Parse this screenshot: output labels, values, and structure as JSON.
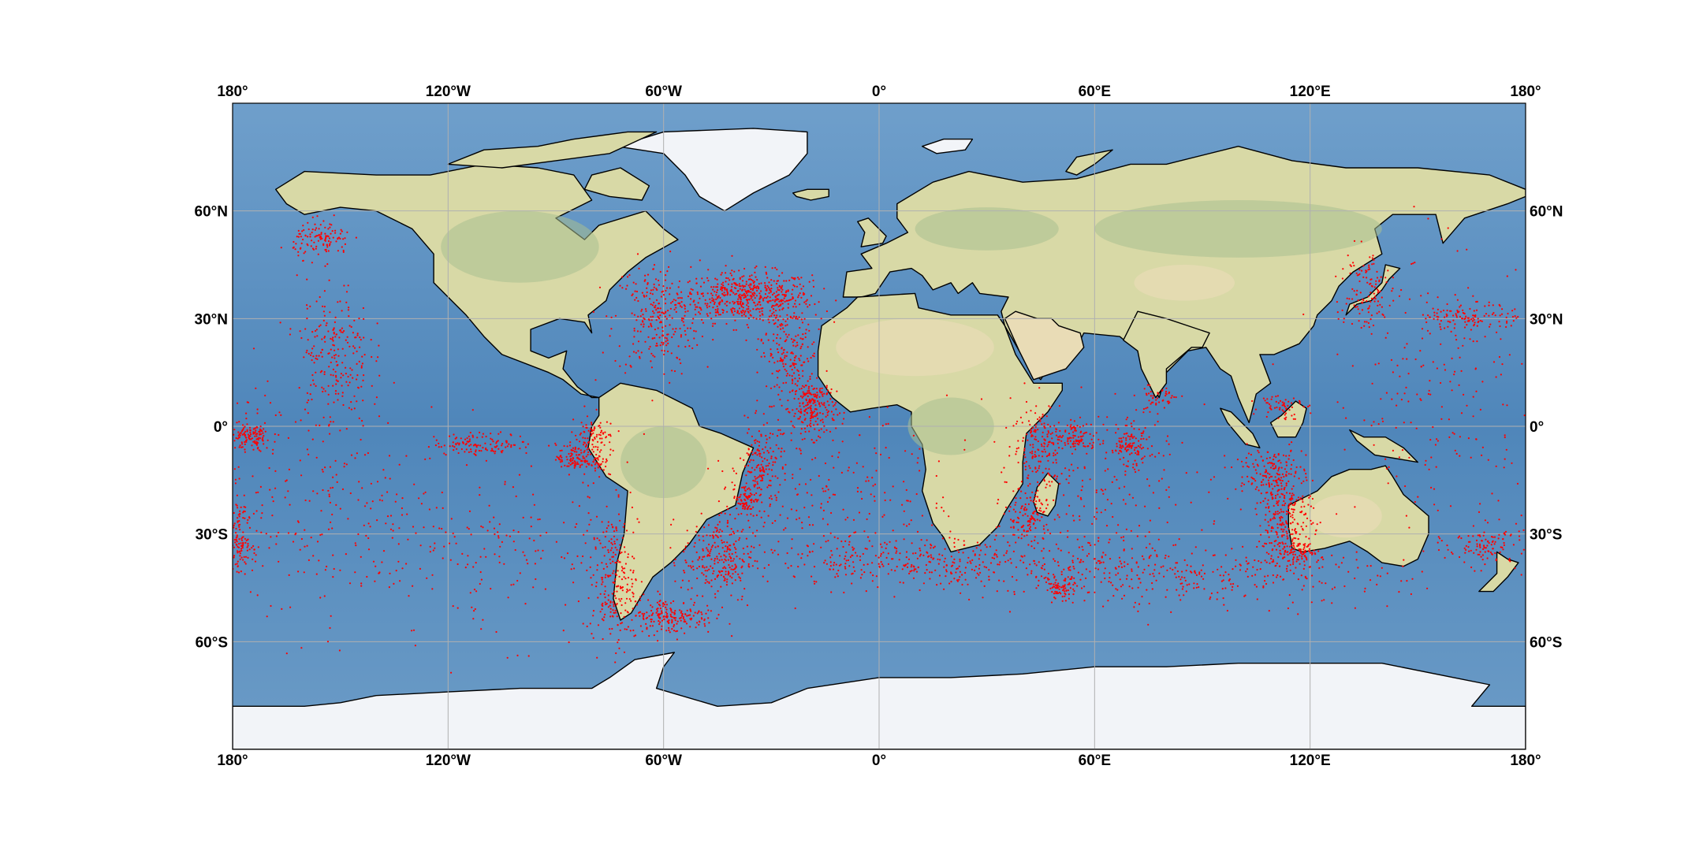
{
  "map": {
    "projection": "plate-carree",
    "extent": {
      "lon": [
        -180,
        180
      ],
      "lat": [
        -90,
        90
      ]
    },
    "background": "stock-image-relief",
    "gridlines": true,
    "coastlines": true,
    "colors": {
      "ocean": "#5b8fbf",
      "ocean_deep": "#4f86ba",
      "land": "#d8d9a6",
      "land_green": "#a9c08f",
      "desert": "#e9dcb6",
      "ice": "#f2f4f8",
      "coastline": "#000000",
      "grid": "#b0b0b0",
      "points": "#ff0000"
    },
    "lon_ticks": [
      {
        "value": -180,
        "label": "180°"
      },
      {
        "value": -120,
        "label": "120°W"
      },
      {
        "value": -60,
        "label": "60°W"
      },
      {
        "value": 0,
        "label": "0°"
      },
      {
        "value": 60,
        "label": "60°E"
      },
      {
        "value": 120,
        "label": "120°E"
      },
      {
        "value": 180,
        "label": "180°"
      }
    ],
    "lat_ticks": [
      {
        "value": 60,
        "label": "60°N"
      },
      {
        "value": 30,
        "label": "30°N"
      },
      {
        "value": 0,
        "label": "0°"
      },
      {
        "value": -30,
        "label": "30°S"
      },
      {
        "value": -60,
        "label": "60°S"
      }
    ],
    "point_clusters": [
      {
        "lon": -37,
        "lat": 36,
        "slon": 9,
        "slat": 3.5,
        "n": 520
      },
      {
        "lon": -62,
        "lat": 30,
        "slon": 6,
        "slat": 8,
        "n": 260
      },
      {
        "lon": -25,
        "lat": 20,
        "slon": 4,
        "slat": 10,
        "n": 260
      },
      {
        "lon": -18,
        "lat": 5,
        "slon": 3,
        "slat": 4,
        "n": 200
      },
      {
        "lon": -33,
        "lat": -12,
        "slon": 3,
        "slat": 6,
        "n": 160
      },
      {
        "lon": -37,
        "lat": -20,
        "slon": 2,
        "slat": 2,
        "n": 80
      },
      {
        "lon": -45,
        "lat": -37,
        "slon": 5,
        "slat": 6,
        "n": 260
      },
      {
        "lon": -58,
        "lat": -53,
        "slon": 6,
        "slat": 2.5,
        "n": 200
      },
      {
        "lon": -74,
        "lat": -43,
        "slon": 3,
        "slat": 9,
        "n": 220
      },
      {
        "lon": -80,
        "lat": -5,
        "slon": 3,
        "slat": 5,
        "n": 140
      },
      {
        "lon": -85,
        "lat": -9,
        "slon": 2.5,
        "slat": 2,
        "n": 90
      },
      {
        "lon": -110,
        "lat": -5,
        "slon": 7,
        "slat": 1.5,
        "n": 120
      },
      {
        "lon": -152,
        "lat": 20,
        "slon": 5,
        "slat": 10,
        "n": 220
      },
      {
        "lon": -155,
        "lat": 52,
        "slon": 4,
        "slat": 2.5,
        "n": 120
      },
      {
        "lon": -175,
        "lat": -3,
        "slon": 3,
        "slat": 2,
        "n": 120
      },
      {
        "lon": -178,
        "lat": -32,
        "slon": 2,
        "slat": 4,
        "n": 120
      },
      {
        "lon": -160,
        "lat": -20,
        "slon": 20,
        "slat": 18,
        "n": 260
      },
      {
        "lon": -110,
        "lat": -35,
        "slon": 22,
        "slat": 12,
        "n": 220
      },
      {
        "lon": 20,
        "lat": -38,
        "slon": 25,
        "slat": 3.5,
        "n": 380
      },
      {
        "lon": 85,
        "lat": -42,
        "slon": 30,
        "slat": 4,
        "n": 320
      },
      {
        "lon": 45,
        "lat": -5,
        "slon": 4,
        "slat": 6,
        "n": 170
      },
      {
        "lon": 55,
        "lat": -3,
        "slon": 3,
        "slat": 2,
        "n": 90
      },
      {
        "lon": 42,
        "lat": -25,
        "slon": 3,
        "slat": 4,
        "n": 120
      },
      {
        "lon": 51,
        "lat": -45,
        "slon": 2,
        "slat": 1.5,
        "n": 60
      },
      {
        "lon": 70,
        "lat": -6,
        "slon": 3,
        "slat": 3,
        "n": 120
      },
      {
        "lon": 78,
        "lat": 8,
        "slon": 3,
        "slat": 2,
        "n": 50
      },
      {
        "lon": 113,
        "lat": -25,
        "slon": 4,
        "slat": 7,
        "n": 300
      },
      {
        "lon": 117,
        "lat": -35,
        "slon": 3,
        "slat": 1.5,
        "n": 90
      },
      {
        "lon": 108,
        "lat": -12,
        "slon": 5,
        "slat": 3,
        "n": 120
      },
      {
        "lon": 112,
        "lat": 6,
        "slon": 3,
        "slat": 2,
        "n": 60
      },
      {
        "lon": 135,
        "lat": 38,
        "slon": 4,
        "slat": 6,
        "n": 120
      },
      {
        "lon": 165,
        "lat": 30,
        "slon": 6,
        "slat": 2,
        "n": 110
      },
      {
        "lon": 170,
        "lat": -33,
        "slon": 6,
        "slat": 3,
        "n": 120
      },
      {
        "lon": 155,
        "lat": 10,
        "slon": 15,
        "slat": 20,
        "n": 220
      },
      {
        "lon": 60,
        "lat": -20,
        "slon": 15,
        "slat": 12,
        "n": 200
      },
      {
        "lon": -10,
        "lat": -20,
        "slon": 15,
        "slat": 12,
        "n": 220
      }
    ]
  }
}
